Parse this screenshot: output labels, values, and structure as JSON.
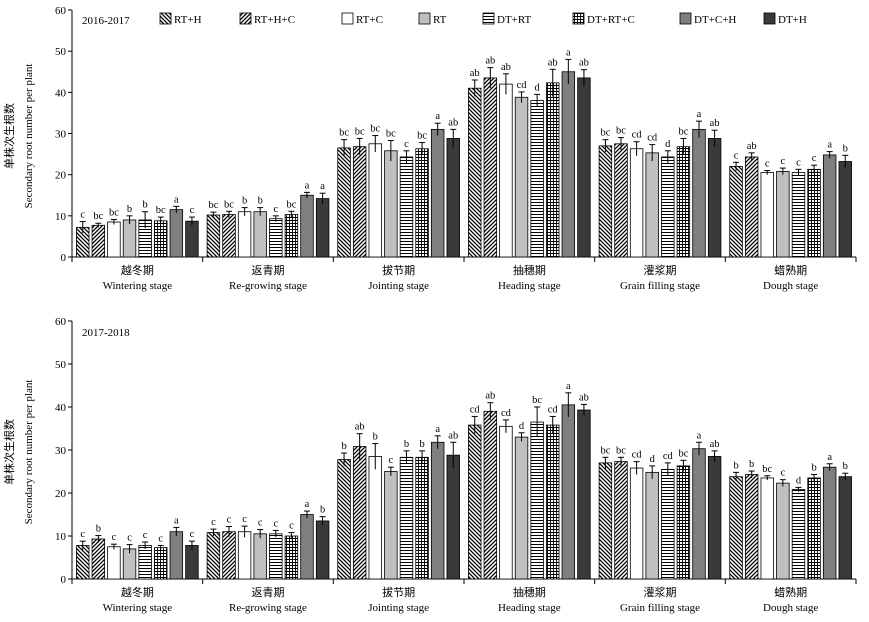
{
  "legend": [
    "RT+H",
    "RT+H+C",
    "RT+C",
    "RT",
    "DT+RT",
    "DT+RT+C",
    "DT+C+H",
    "DT+H"
  ],
  "patterns": [
    "diag-rev",
    "diag-fwd",
    "white",
    "light-gray",
    "hlines",
    "grid",
    "mid-gray",
    "dark"
  ],
  "colors": {
    "light_gray": "#c0c0c0",
    "mid_gray": "#7f7f7f",
    "dark": "#3a3a3a",
    "axis": "#000000"
  },
  "y_axis": {
    "label_cn": "单株次生根数",
    "label_en": "Secondary root number per plant"
  },
  "stages": [
    {
      "cn": "越冬期",
      "en": "Wintering stage"
    },
    {
      "cn": "返青期",
      "en": "Re-growing stage"
    },
    {
      "cn": "拔节期",
      "en": "Jointing stage"
    },
    {
      "cn": "抽穗期",
      "en": "Heading stage"
    },
    {
      "cn": "灌浆期",
      "en": "Grain filling stage"
    },
    {
      "cn": "蜡熟期",
      "en": "Dough stage"
    }
  ],
  "chart_data": [
    {
      "type": "bar",
      "title": "2016-2017",
      "ylim": [
        0,
        60
      ],
      "yticks": [
        0,
        10,
        20,
        30,
        40,
        50,
        60
      ],
      "categories": [
        "越冬期 Wintering stage",
        "返青期 Re-growing stage",
        "拔节期 Jointing stage",
        "抽穗期 Heading stage",
        "灌浆期 Grain filling stage",
        "蜡熟期 Dough stage"
      ],
      "legend_position": "top",
      "series": [
        {
          "name": "RT+H",
          "values": [
            7.2,
            10.2,
            26.5,
            41.0,
            27.0,
            22.0
          ],
          "errors": [
            1.4,
            0.7,
            2.0,
            2.0,
            1.5,
            1.0
          ],
          "letters": [
            "c",
            "bc",
            "bc",
            "ab",
            "bc",
            "c"
          ]
        },
        {
          "name": "RT+H+C",
          "values": [
            7.7,
            10.3,
            26.8,
            43.5,
            27.5,
            24.3
          ],
          "errors": [
            0.5,
            0.8,
            2.0,
            2.5,
            1.5,
            1.0
          ],
          "letters": [
            "bc",
            "bc",
            "bc",
            "ab",
            "bc",
            "ab"
          ]
        },
        {
          "name": "RT+C",
          "values": [
            8.5,
            11.0,
            27.5,
            42.0,
            26.3,
            20.5
          ],
          "errors": [
            0.6,
            1.0,
            2.0,
            2.5,
            1.7,
            0.5
          ],
          "letters": [
            "bc",
            "b",
            "bc",
            "ab",
            "cd",
            "c"
          ]
        },
        {
          "name": "RT",
          "values": [
            9.0,
            11.0,
            25.8,
            38.8,
            25.3,
            20.8
          ],
          "errors": [
            1.0,
            1.0,
            2.5,
            1.3,
            2.0,
            0.8
          ],
          "letters": [
            "b",
            "b",
            "bc",
            "cd",
            "cd",
            "c"
          ]
        },
        {
          "name": "DT+RT",
          "values": [
            9.0,
            9.3,
            24.3,
            38.0,
            24.3,
            20.5
          ],
          "errors": [
            2.0,
            0.7,
            1.5,
            1.5,
            1.5,
            0.8
          ],
          "letters": [
            "b",
            "c",
            "c",
            "d",
            "d",
            "c"
          ]
        },
        {
          "name": "DT+RT+C",
          "values": [
            8.8,
            10.3,
            26.3,
            42.3,
            26.8,
            21.3
          ],
          "errors": [
            0.9,
            0.8,
            1.5,
            3.3,
            2.0,
            1.0
          ],
          "letters": [
            "bc",
            "bc",
            "bc",
            "ab",
            "bc",
            "c"
          ]
        },
        {
          "name": "DT+C+H",
          "values": [
            11.5,
            15.0,
            31.0,
            45.0,
            31.0,
            24.8
          ],
          "errors": [
            0.8,
            0.7,
            1.5,
            3.0,
            2.0,
            0.8
          ],
          "letters": [
            "a",
            "a",
            "a",
            "a",
            "a",
            "a"
          ]
        },
        {
          "name": "DT+H",
          "values": [
            8.7,
            14.2,
            28.8,
            43.5,
            28.8,
            23.2
          ],
          "errors": [
            1.0,
            1.3,
            2.2,
            2.0,
            2.0,
            1.5
          ],
          "letters": [
            "c",
            "a",
            "ab",
            "ab",
            "ab",
            "b"
          ]
        }
      ]
    },
    {
      "type": "bar",
      "title": "2017-2018",
      "ylim": [
        0,
        60
      ],
      "yticks": [
        0,
        10,
        20,
        30,
        40,
        50,
        60
      ],
      "categories": [
        "越冬期 Wintering stage",
        "返青期 Re-growing stage",
        "拔节期 Jointing stage",
        "抽穗期 Heading stage",
        "灌浆期 Grain filling stage",
        "蜡熟期 Dough stage"
      ],
      "series": [
        {
          "name": "RT+H",
          "values": [
            7.8,
            10.8,
            27.8,
            35.8,
            27.0,
            23.8
          ],
          "errors": [
            1.0,
            0.8,
            1.5,
            2.0,
            1.3,
            1.0
          ],
          "letters": [
            "c",
            "c",
            "b",
            "cd",
            "bc",
            "b"
          ]
        },
        {
          "name": "RT+H+C",
          "values": [
            9.3,
            11.0,
            30.8,
            39.0,
            27.3,
            24.3
          ],
          "errors": [
            0.8,
            1.2,
            3.0,
            2.0,
            1.0,
            0.8
          ],
          "letters": [
            "b",
            "c",
            "ab",
            "ab",
            "bc",
            "b"
          ]
        },
        {
          "name": "RT+C",
          "values": [
            7.5,
            11.0,
            28.5,
            35.5,
            25.8,
            23.5
          ],
          "errors": [
            0.6,
            1.3,
            3.0,
            1.5,
            1.5,
            0.5
          ],
          "letters": [
            "c",
            "c",
            "b",
            "cd",
            "cd",
            "bc"
          ]
        },
        {
          "name": "RT",
          "values": [
            7.0,
            10.5,
            25.0,
            33.0,
            24.8,
            22.3
          ],
          "errors": [
            1.0,
            1.0,
            1.0,
            1.0,
            1.5,
            0.8
          ],
          "letters": [
            "c",
            "c",
            "c",
            "d",
            "d",
            "c"
          ]
        },
        {
          "name": "DT+RT",
          "values": [
            7.8,
            10.5,
            28.3,
            36.5,
            25.5,
            20.8
          ],
          "errors": [
            0.8,
            0.8,
            1.5,
            3.5,
            1.5,
            0.5
          ],
          "letters": [
            "c",
            "c",
            "b",
            "bc",
            "cd",
            "d"
          ]
        },
        {
          "name": "DT+RT+C",
          "values": [
            7.3,
            10.0,
            28.3,
            35.8,
            26.3,
            23.5
          ],
          "errors": [
            0.5,
            0.8,
            1.5,
            2.0,
            1.3,
            0.8
          ],
          "letters": [
            "c",
            "c",
            "b",
            "cd",
            "bc",
            "b"
          ]
        },
        {
          "name": "DT+C+H",
          "values": [
            11.0,
            15.0,
            31.8,
            40.5,
            30.3,
            26.0
          ],
          "errors": [
            1.0,
            0.8,
            1.5,
            2.8,
            1.5,
            0.8
          ],
          "letters": [
            "a",
            "a",
            "a",
            "a",
            "a",
            "a"
          ]
        },
        {
          "name": "DT+H",
          "values": [
            7.8,
            13.5,
            28.8,
            39.3,
            28.5,
            23.8
          ],
          "errors": [
            1.0,
            1.0,
            3.0,
            1.3,
            1.3,
            0.8
          ],
          "letters": [
            "c",
            "b",
            "ab",
            "ab",
            "ab",
            "b"
          ]
        }
      ]
    }
  ]
}
